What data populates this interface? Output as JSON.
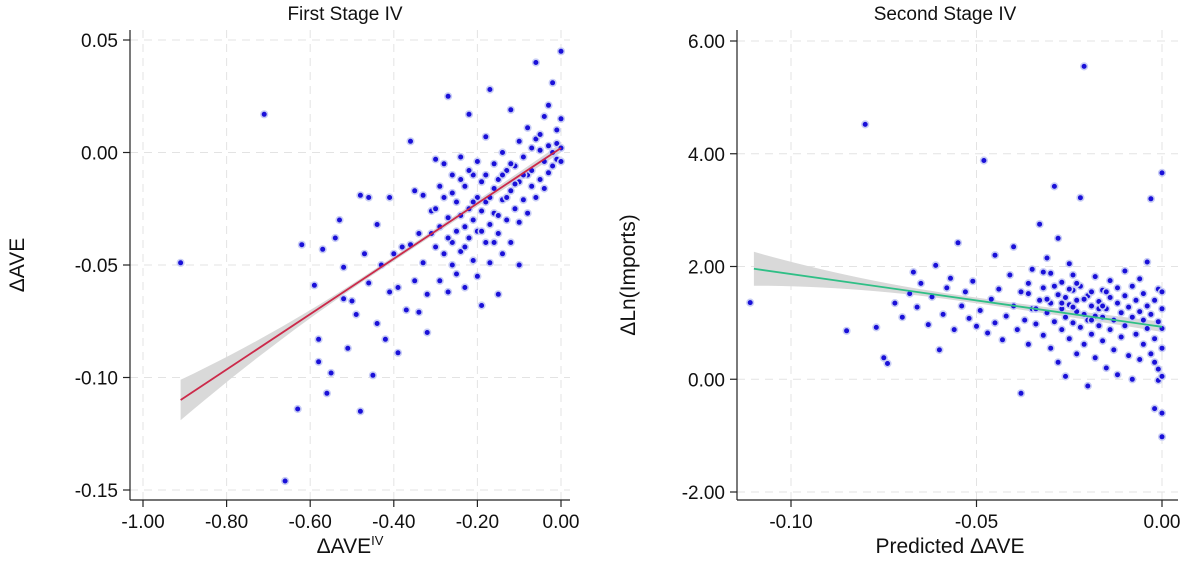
{
  "chart_data": [
    {
      "type": "scatter",
      "title": "First Stage IV",
      "xlabel": "ΔAVE",
      "xlabel_sup": "IV",
      "ylabel": "ΔAVE",
      "xlim": [
        -1.0,
        0.0
      ],
      "ylim": [
        -0.15,
        0.05
      ],
      "xticks": [
        -1.0,
        -0.8,
        -0.6,
        -0.4,
        -0.2,
        0.0
      ],
      "xtick_labels": [
        "-1.00",
        "-0.80",
        "-0.60",
        "-0.40",
        "-0.20",
        "0.00"
      ],
      "yticks": [
        -0.15,
        -0.1,
        -0.05,
        0.0,
        0.05
      ],
      "ytick_labels": [
        "-0.15",
        "-0.10",
        "-0.05",
        "0.00",
        "0.05"
      ],
      "grid": true,
      "point_color": "#1a10d8",
      "fit_line": {
        "x": [
          -0.91,
          0.0
        ],
        "y": [
          -0.11,
          0.002
        ],
        "color": "#cc2a4a",
        "ci_halfwidth_at_ends": [
          0.009,
          0.002
        ],
        "ci_halfwidth_at_center": 0.001,
        "ci_color": "#d9d9d9"
      },
      "points": [
        [
          -0.91,
          -0.049
        ],
        [
          -0.71,
          0.017
        ],
        [
          -0.66,
          -0.146
        ],
        [
          -0.63,
          -0.114
        ],
        [
          -0.62,
          -0.041
        ],
        [
          -0.59,
          -0.059
        ],
        [
          -0.58,
          -0.093
        ],
        [
          -0.58,
          -0.083
        ],
        [
          -0.57,
          -0.043
        ],
        [
          -0.56,
          -0.107
        ],
        [
          -0.55,
          -0.098
        ],
        [
          -0.54,
          -0.038
        ],
        [
          -0.53,
          -0.03
        ],
        [
          -0.52,
          -0.065
        ],
        [
          -0.52,
          -0.051
        ],
        [
          -0.51,
          -0.087
        ],
        [
          -0.5,
          -0.066
        ],
        [
          -0.49,
          -0.072
        ],
        [
          -0.48,
          -0.115
        ],
        [
          -0.48,
          -0.019
        ],
        [
          -0.47,
          -0.045
        ],
        [
          -0.46,
          -0.02
        ],
        [
          -0.46,
          -0.058
        ],
        [
          -0.45,
          -0.099
        ],
        [
          -0.44,
          -0.032
        ],
        [
          -0.44,
          -0.076
        ],
        [
          -0.43,
          -0.05
        ],
        [
          -0.42,
          -0.083
        ],
        [
          -0.41,
          -0.062
        ],
        [
          -0.41,
          -0.02
        ],
        [
          -0.4,
          -0.045
        ],
        [
          -0.39,
          -0.06
        ],
        [
          -0.39,
          -0.089
        ],
        [
          -0.38,
          -0.042
        ],
        [
          -0.37,
          -0.07
        ],
        [
          -0.36,
          0.005
        ],
        [
          -0.36,
          -0.041
        ],
        [
          -0.35,
          -0.017
        ],
        [
          -0.35,
          -0.057
        ],
        [
          -0.34,
          -0.036
        ],
        [
          -0.34,
          -0.071
        ],
        [
          -0.33,
          -0.019
        ],
        [
          -0.33,
          -0.049
        ],
        [
          -0.32,
          -0.063
        ],
        [
          -0.32,
          -0.08
        ],
        [
          -0.31,
          -0.036
        ],
        [
          -0.31,
          -0.026
        ],
        [
          -0.3,
          -0.042
        ],
        [
          -0.3,
          -0.003
        ],
        [
          -0.29,
          -0.057
        ],
        [
          -0.29,
          -0.033
        ],
        [
          -0.28,
          -0.02
        ],
        [
          -0.28,
          -0.045
        ],
        [
          -0.28,
          -0.005
        ],
        [
          -0.27,
          -0.029
        ],
        [
          -0.27,
          -0.062
        ],
        [
          -0.27,
          0.025
        ],
        [
          -0.26,
          -0.04
        ],
        [
          -0.26,
          -0.018
        ],
        [
          -0.26,
          -0.01
        ],
        [
          -0.25,
          -0.035
        ],
        [
          -0.25,
          -0.022
        ],
        [
          -0.25,
          -0.054
        ],
        [
          -0.24,
          -0.028
        ],
        [
          -0.24,
          -0.002
        ],
        [
          -0.24,
          -0.044
        ],
        [
          -0.23,
          -0.015
        ],
        [
          -0.23,
          -0.033
        ],
        [
          -0.23,
          -0.06
        ],
        [
          -0.22,
          -0.025
        ],
        [
          -0.22,
          0.017
        ],
        [
          -0.22,
          -0.038
        ],
        [
          -0.21,
          -0.01
        ],
        [
          -0.21,
          -0.03
        ],
        [
          -0.21,
          -0.048
        ],
        [
          -0.2,
          -0.02
        ],
        [
          -0.2,
          -0.004
        ],
        [
          -0.2,
          -0.035
        ],
        [
          -0.19,
          -0.026
        ],
        [
          -0.19,
          -0.068
        ],
        [
          -0.19,
          -0.013
        ],
        [
          -0.18,
          -0.04
        ],
        [
          -0.18,
          0.007
        ],
        [
          -0.18,
          -0.022
        ],
        [
          -0.17,
          -0.032
        ],
        [
          -0.17,
          -0.049
        ],
        [
          -0.17,
          0.028
        ],
        [
          -0.16,
          -0.016
        ],
        [
          -0.16,
          -0.027
        ],
        [
          -0.16,
          -0.005
        ],
        [
          -0.15,
          -0.036
        ],
        [
          -0.15,
          -0.063
        ],
        [
          -0.15,
          -0.012
        ],
        [
          -0.14,
          -0.021
        ],
        [
          -0.14,
          0.0
        ],
        [
          -0.14,
          -0.045
        ],
        [
          -0.13,
          -0.03
        ],
        [
          -0.13,
          -0.008
        ],
        [
          -0.12,
          -0.017
        ],
        [
          -0.12,
          -0.04
        ],
        [
          -0.12,
          0.019
        ],
        [
          -0.11,
          -0.025
        ],
        [
          -0.11,
          -0.006
        ],
        [
          -0.1,
          -0.05
        ],
        [
          -0.1,
          -0.013
        ],
        [
          -0.1,
          -0.031
        ],
        [
          -0.09,
          -0.002
        ],
        [
          -0.09,
          -0.021
        ],
        [
          -0.08,
          -0.01
        ],
        [
          -0.08,
          0.011
        ],
        [
          -0.08,
          -0.027
        ],
        [
          -0.07,
          -0.015
        ],
        [
          -0.07,
          0.002
        ],
        [
          -0.07,
          -0.008
        ],
        [
          -0.06,
          -0.02
        ],
        [
          -0.06,
          0.006
        ],
        [
          -0.06,
          0.04
        ],
        [
          -0.05,
          -0.012
        ],
        [
          -0.05,
          0.001
        ],
        [
          -0.05,
          0.008
        ],
        [
          -0.04,
          -0.004
        ],
        [
          -0.04,
          -0.016
        ],
        [
          -0.04,
          0.016
        ],
        [
          -0.03,
          0.003
        ],
        [
          -0.03,
          -0.009
        ],
        [
          -0.03,
          0.021
        ],
        [
          -0.02,
          0.0
        ],
        [
          -0.02,
          0.031
        ],
        [
          -0.02,
          -0.006
        ],
        [
          -0.01,
          0.004
        ],
        [
          -0.01,
          0.01
        ],
        [
          -0.01,
          -0.003
        ],
        [
          0.0,
          0.045
        ],
        [
          0.0,
          0.002
        ],
        [
          0.0,
          0.015
        ],
        [
          0.0,
          -0.004
        ],
        [
          -0.3,
          -0.025
        ],
        [
          -0.29,
          -0.015
        ],
        [
          -0.27,
          -0.038
        ],
        [
          -0.26,
          -0.05
        ],
        [
          -0.24,
          -0.012
        ],
        [
          -0.23,
          -0.042
        ],
        [
          -0.22,
          -0.008
        ],
        [
          -0.21,
          -0.022
        ],
        [
          -0.2,
          -0.055
        ],
        [
          -0.19,
          -0.035
        ],
        [
          -0.18,
          -0.01
        ],
        [
          -0.17,
          -0.02
        ],
        [
          -0.16,
          -0.04
        ],
        [
          -0.15,
          -0.028
        ],
        [
          -0.14,
          -0.01
        ],
        [
          -0.13,
          -0.02
        ],
        [
          -0.12,
          -0.005
        ],
        [
          -0.11,
          -0.014
        ],
        [
          -0.1,
          0.005
        ],
        [
          -0.09,
          -0.01
        ]
      ]
    },
    {
      "type": "scatter",
      "title": "Second Stage IV",
      "xlabel": "Predicted ΔAVE",
      "ylabel": "ΔLn(Imports)",
      "xlim": [
        -0.112,
        0.0
      ],
      "ylim": [
        -2.0,
        6.0
      ],
      "xticks": [
        -0.1,
        -0.05,
        0.0
      ],
      "xtick_labels": [
        "-0.10",
        "-0.05",
        "0.00"
      ],
      "yticks": [
        -2.0,
        0.0,
        2.0,
        4.0,
        6.0
      ],
      "ytick_labels": [
        "-2.00",
        "0.00",
        "2.00",
        "4.00",
        "6.00"
      ],
      "grid": true,
      "point_color": "#1a10d8",
      "fit_line": {
        "x": [
          -0.11,
          0.0
        ],
        "y": [
          1.96,
          0.93
        ],
        "color": "#2fbf86",
        "ci_halfwidth_at_ends": [
          0.3,
          0.09
        ],
        "ci_halfwidth_at_center": 0.05,
        "ci_color": "#d9d9d9"
      },
      "points": [
        [
          -0.111,
          1.36
        ],
        [
          -0.085,
          0.86
        ],
        [
          -0.08,
          4.52
        ],
        [
          -0.077,
          0.92
        ],
        [
          -0.075,
          0.38
        ],
        [
          -0.074,
          0.28
        ],
        [
          -0.072,
          1.35
        ],
        [
          -0.07,
          1.1
        ],
        [
          -0.068,
          1.52
        ],
        [
          -0.067,
          1.9
        ],
        [
          -0.066,
          1.28
        ],
        [
          -0.065,
          1.7
        ],
        [
          -0.063,
          0.97
        ],
        [
          -0.062,
          1.46
        ],
        [
          -0.061,
          2.02
        ],
        [
          -0.06,
          0.52
        ],
        [
          -0.059,
          1.15
        ],
        [
          -0.058,
          1.62
        ],
        [
          -0.057,
          1.79
        ],
        [
          -0.056,
          0.88
        ],
        [
          -0.055,
          2.42
        ],
        [
          -0.054,
          1.3
        ],
        [
          -0.053,
          1.55
        ],
        [
          -0.052,
          1.08
        ],
        [
          -0.051,
          1.74
        ],
        [
          -0.05,
          0.94
        ],
        [
          -0.049,
          1.22
        ],
        [
          -0.048,
          3.88
        ],
        [
          -0.047,
          0.82
        ],
        [
          -0.046,
          1.42
        ],
        [
          -0.045,
          2.2
        ],
        [
          -0.045,
          1.0
        ],
        [
          -0.044,
          1.6
        ],
        [
          -0.043,
          0.7
        ],
        [
          -0.042,
          1.12
        ],
        [
          -0.041,
          1.85
        ],
        [
          -0.04,
          1.3
        ],
        [
          -0.04,
          2.35
        ],
        [
          -0.039,
          0.88
        ],
        [
          -0.038,
          1.55
        ],
        [
          -0.038,
          -0.25
        ],
        [
          -0.037,
          1.05
        ],
        [
          -0.036,
          1.7
        ],
        [
          -0.036,
          0.62
        ],
        [
          -0.035,
          1.25
        ],
        [
          -0.035,
          1.95
        ],
        [
          -0.034,
          0.98
        ],
        [
          -0.033,
          1.4
        ],
        [
          -0.033,
          2.75
        ],
        [
          -0.032,
          0.78
        ],
        [
          -0.032,
          1.62
        ],
        [
          -0.031,
          1.18
        ],
        [
          -0.031,
          2.15
        ],
        [
          -0.03,
          0.55
        ],
        [
          -0.03,
          1.35
        ],
        [
          -0.03,
          1.88
        ],
        [
          -0.029,
          3.42
        ],
        [
          -0.029,
          1.02
        ],
        [
          -0.028,
          1.5
        ],
        [
          -0.028,
          0.3
        ],
        [
          -0.028,
          2.5
        ],
        [
          -0.027,
          1.25
        ],
        [
          -0.027,
          0.88
        ],
        [
          -0.027,
          1.72
        ],
        [
          -0.026,
          1.1
        ],
        [
          -0.026,
          1.45
        ],
        [
          -0.026,
          0.05
        ],
        [
          -0.025,
          2.05
        ],
        [
          -0.025,
          1.32
        ],
        [
          -0.025,
          0.72
        ],
        [
          -0.024,
          1.58
        ],
        [
          -0.024,
          1.0
        ],
        [
          -0.024,
          1.85
        ],
        [
          -0.023,
          1.2
        ],
        [
          -0.023,
          0.45
        ],
        [
          -0.023,
          1.4
        ],
        [
          -0.022,
          3.22
        ],
        [
          -0.022,
          0.92
        ],
        [
          -0.022,
          1.65
        ],
        [
          -0.021,
          5.55
        ],
        [
          -0.021,
          1.15
        ],
        [
          -0.021,
          0.62
        ],
        [
          -0.02,
          1.48
        ],
        [
          -0.02,
          1.05
        ],
        [
          -0.02,
          -0.12
        ],
        [
          -0.019,
          1.3
        ],
        [
          -0.019,
          0.8
        ],
        [
          -0.019,
          1.55
        ],
        [
          -0.018,
          1.12
        ],
        [
          -0.018,
          0.38
        ],
        [
          -0.018,
          1.82
        ],
        [
          -0.017,
          0.95
        ],
        [
          -0.017,
          1.38
        ],
        [
          -0.016,
          1.1
        ],
        [
          -0.016,
          0.68
        ],
        [
          -0.016,
          1.58
        ],
        [
          -0.015,
          1.25
        ],
        [
          -0.015,
          0.2
        ],
        [
          -0.014,
          1.45
        ],
        [
          -0.014,
          0.88
        ],
        [
          -0.014,
          1.75
        ],
        [
          -0.013,
          1.05
        ],
        [
          -0.013,
          0.52
        ],
        [
          -0.012,
          1.35
        ],
        [
          -0.012,
          1.62
        ],
        [
          -0.012,
          0.08
        ],
        [
          -0.011,
          1.18
        ],
        [
          -0.011,
          0.75
        ],
        [
          -0.01,
          1.48
        ],
        [
          -0.01,
          0.95
        ],
        [
          -0.01,
          1.92
        ],
        [
          -0.009,
          1.28
        ],
        [
          -0.009,
          0.42
        ],
        [
          -0.008,
          1.1
        ],
        [
          -0.008,
          1.65
        ],
        [
          -0.008,
          0.0
        ],
        [
          -0.007,
          1.4
        ],
        [
          -0.007,
          0.8
        ],
        [
          -0.006,
          1.2
        ],
        [
          -0.006,
          1.78
        ],
        [
          -0.006,
          0.35
        ],
        [
          -0.005,
          1.05
        ],
        [
          -0.005,
          1.52
        ],
        [
          -0.005,
          0.62
        ],
        [
          -0.004,
          1.3
        ],
        [
          -0.004,
          0.9
        ],
        [
          -0.004,
          2.08
        ],
        [
          -0.003,
          1.15
        ],
        [
          -0.003,
          0.45
        ],
        [
          -0.003,
          3.2
        ],
        [
          -0.002,
          1.4
        ],
        [
          -0.002,
          0.72
        ],
        [
          -0.002,
          -0.52
        ],
        [
          -0.001,
          1.02
        ],
        [
          -0.001,
          1.6
        ],
        [
          -0.001,
          0.18
        ],
        [
          0.0,
          3.66
        ],
        [
          0.0,
          0.9
        ],
        [
          0.0,
          1.25
        ],
        [
          0.0,
          -1.02
        ],
        [
          0.0,
          -0.6
        ],
        [
          0.0,
          0.55
        ],
        [
          0.0,
          1.55
        ],
        [
          -0.001,
          -0.02
        ],
        [
          -0.002,
          0.3
        ],
        [
          0.0,
          0.05
        ],
        [
          -0.036,
          1.52
        ],
        [
          -0.034,
          1.25
        ],
        [
          -0.032,
          1.9
        ],
        [
          -0.031,
          1.42
        ],
        [
          -0.029,
          1.65
        ],
        [
          -0.027,
          1.35
        ],
        [
          -0.025,
          1.6
        ],
        [
          -0.024,
          1.28
        ],
        [
          -0.023,
          1.7
        ],
        [
          -0.021,
          1.42
        ],
        [
          -0.019,
          1.05
        ],
        [
          -0.017,
          1.25
        ],
        [
          -0.016,
          1.3
        ],
        [
          -0.015,
          1.55
        ]
      ]
    }
  ]
}
